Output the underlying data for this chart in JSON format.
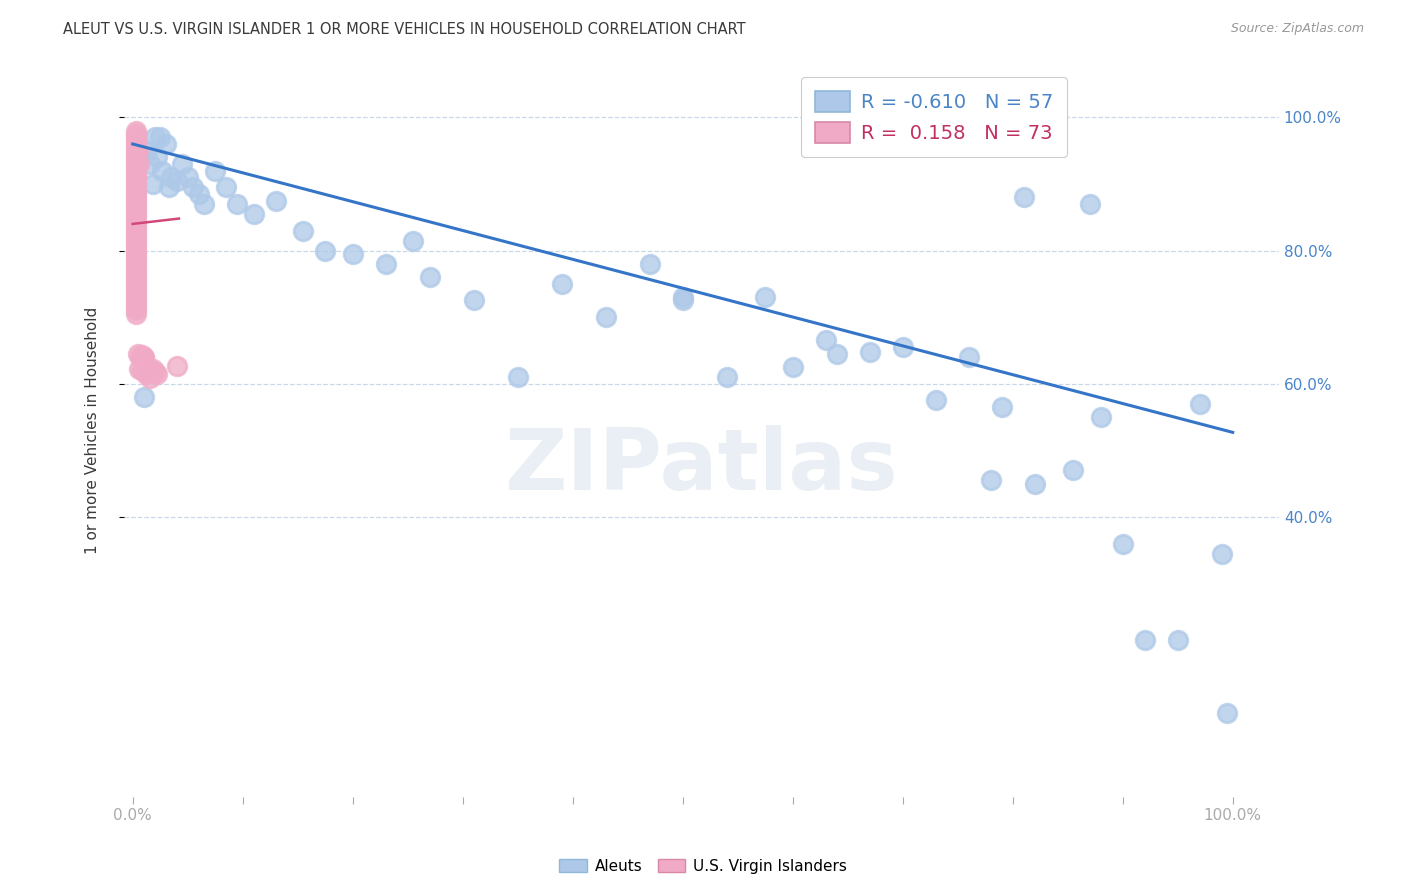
{
  "title": "ALEUT VS U.S. VIRGIN ISLANDER 1 OR MORE VEHICLES IN HOUSEHOLD CORRELATION CHART",
  "source": "Source: ZipAtlas.com",
  "ylabel": "1 or more Vehicles in Household",
  "watermark": "ZIPatlas",
  "legend_blue_R": "-0.610",
  "legend_blue_N": "57",
  "legend_pink_R": "0.158",
  "legend_pink_N": "73",
  "blue_scatter_color": "#adc8e8",
  "pink_scatter_color": "#f0aac5",
  "blue_line_color": "#3575c8",
  "pink_line_color": "#d04878",
  "title_color": "#3a3a3a",
  "right_axis_color": "#4a85c8",
  "grid_color": "#c8d8e8",
  "background_color": "#ffffff",
  "aleuts_x": [
    0.01,
    0.013,
    0.016,
    0.018,
    0.02,
    0.022,
    0.025,
    0.027,
    0.03,
    0.033,
    0.035,
    0.04,
    0.045,
    0.05,
    0.055,
    0.06,
    0.065,
    0.075,
    0.085,
    0.095,
    0.11,
    0.13,
    0.155,
    0.175,
    0.2,
    0.23,
    0.255,
    0.27,
    0.31,
    0.35,
    0.39,
    0.43,
    0.47,
    0.5,
    0.54,
    0.575,
    0.6,
    0.64,
    0.67,
    0.7,
    0.73,
    0.76,
    0.79,
    0.82,
    0.855,
    0.88,
    0.9,
    0.92,
    0.95,
    0.97,
    0.99,
    0.995,
    0.81,
    0.87,
    0.63,
    0.5,
    0.78
  ],
  "aleuts_y": [
    0.58,
    0.95,
    0.93,
    0.9,
    0.97,
    0.94,
    0.97,
    0.92,
    0.96,
    0.895,
    0.91,
    0.905,
    0.93,
    0.91,
    0.895,
    0.885,
    0.87,
    0.92,
    0.895,
    0.87,
    0.855,
    0.875,
    0.83,
    0.8,
    0.795,
    0.78,
    0.815,
    0.76,
    0.725,
    0.61,
    0.75,
    0.7,
    0.78,
    0.725,
    0.61,
    0.73,
    0.625,
    0.645,
    0.648,
    0.655,
    0.575,
    0.64,
    0.565,
    0.45,
    0.47,
    0.55,
    0.36,
    0.215,
    0.215,
    0.57,
    0.345,
    0.105,
    0.88,
    0.87,
    0.665,
    0.73,
    0.455
  ],
  "vi_x": [
    0.003,
    0.003,
    0.003,
    0.003,
    0.003,
    0.003,
    0.003,
    0.003,
    0.003,
    0.003,
    0.003,
    0.003,
    0.003,
    0.003,
    0.003,
    0.003,
    0.003,
    0.003,
    0.003,
    0.003,
    0.003,
    0.003,
    0.003,
    0.003,
    0.003,
    0.003,
    0.003,
    0.003,
    0.003,
    0.003,
    0.003,
    0.003,
    0.003,
    0.003,
    0.003,
    0.003,
    0.003,
    0.003,
    0.003,
    0.003,
    0.003,
    0.003,
    0.003,
    0.003,
    0.005,
    0.006,
    0.007,
    0.008,
    0.01,
    0.012,
    0.014,
    0.016,
    0.018,
    0.02,
    0.022,
    0.014,
    0.01,
    0.008,
    0.006,
    0.005,
    0.003,
    0.003,
    0.003,
    0.003,
    0.003,
    0.003,
    0.003,
    0.003,
    0.003,
    0.003,
    0.003,
    0.003,
    0.04
  ],
  "vi_y": [
    0.98,
    0.975,
    0.97,
    0.965,
    0.96,
    0.955,
    0.95,
    0.945,
    0.94,
    0.935,
    0.93,
    0.925,
    0.92,
    0.915,
    0.91,
    0.905,
    0.9,
    0.895,
    0.89,
    0.885,
    0.88,
    0.875,
    0.87,
    0.865,
    0.86,
    0.855,
    0.85,
    0.845,
    0.84,
    0.835,
    0.83,
    0.825,
    0.82,
    0.815,
    0.81,
    0.805,
    0.8,
    0.795,
    0.79,
    0.785,
    0.78,
    0.775,
    0.77,
    0.765,
    0.95,
    0.93,
    0.64,
    0.62,
    0.64,
    0.615,
    0.62,
    0.608,
    0.622,
    0.618,
    0.615,
    0.623,
    0.638,
    0.643,
    0.622,
    0.645,
    0.76,
    0.755,
    0.75,
    0.745,
    0.74,
    0.735,
    0.73,
    0.725,
    0.72,
    0.715,
    0.71,
    0.705,
    0.627
  ],
  "blue_trend_x0": 0.0,
  "blue_trend_y0": 0.96,
  "blue_trend_x1": 1.0,
  "blue_trend_y1": 0.527,
  "pink_trend_x0": 0.0,
  "pink_trend_y0": 0.84,
  "pink_trend_x1": 0.042,
  "pink_trend_y1": 0.848,
  "xlim_min": -0.008,
  "xlim_max": 1.042,
  "ylim_min": -0.02,
  "ylim_max": 1.08,
  "ytick_positions": [
    0.4,
    0.6,
    0.8,
    1.0
  ],
  "ytick_labels": [
    "40.0%",
    "60.0%",
    "80.0%",
    "100.0%"
  ],
  "xtick_positions": [
    0.0,
    0.1,
    0.2,
    0.3,
    0.4,
    0.5,
    0.6,
    0.7,
    0.8,
    0.9,
    1.0
  ]
}
